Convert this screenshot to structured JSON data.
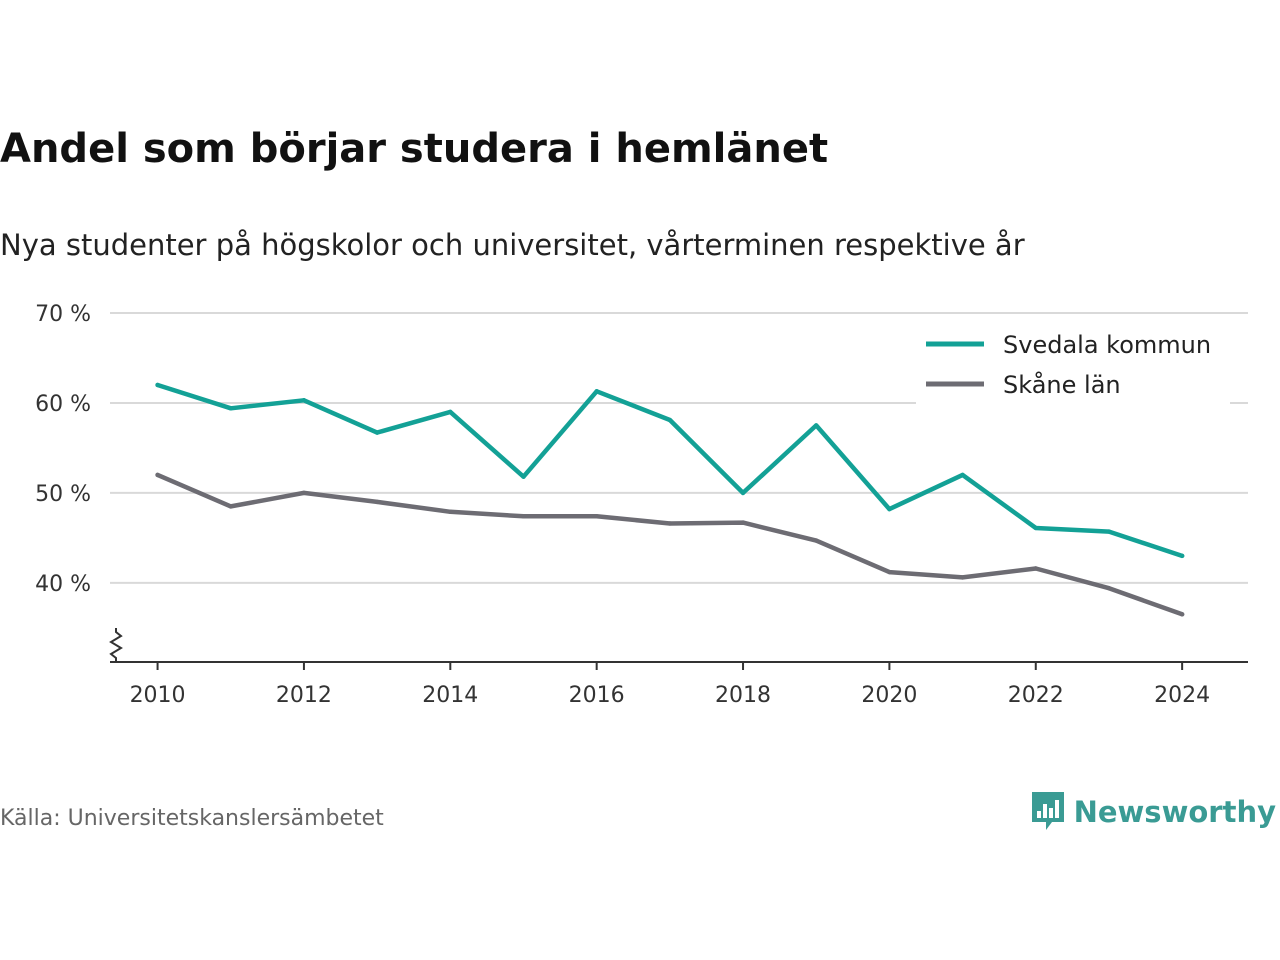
{
  "title": "Andel som börjar studera i hemlänet",
  "subtitle": "Nya studenter på högskolor och universitet, vårterminen respektive år",
  "source": "Källa: Universitetskanslersämbetet",
  "brand": {
    "name": "Newsworthy",
    "icon": "newsworthy-logo-icon",
    "color": "#3a9b94"
  },
  "colors": {
    "svedala": "#13a196",
    "skane": "#6d6c73",
    "grid": "#d9d9d9",
    "axis": "#333333"
  },
  "chart_data": {
    "type": "line",
    "x": [
      2010,
      2011,
      2012,
      2013,
      2014,
      2015,
      2016,
      2017,
      2018,
      2019,
      2020,
      2021,
      2022,
      2023,
      2024
    ],
    "series": [
      {
        "name": "Svedala kommun",
        "color": "#13a196",
        "values": [
          62.0,
          59.4,
          60.3,
          56.7,
          59.0,
          51.8,
          61.3,
          58.1,
          50.0,
          57.5,
          48.2,
          52.0,
          46.1,
          45.7,
          43.0
        ]
      },
      {
        "name": "Skåne län",
        "color": "#6d6c73",
        "values": [
          52.0,
          48.5,
          50.0,
          49.0,
          47.9,
          47.4,
          47.4,
          46.6,
          46.7,
          44.7,
          41.2,
          40.6,
          41.6,
          39.4,
          36.5
        ]
      }
    ],
    "xticks": [
      2010,
      2012,
      2014,
      2016,
      2018,
      2020,
      2022,
      2024
    ],
    "yticks": [
      {
        "value": 40,
        "label": "40 %"
      },
      {
        "value": 50,
        "label": "50 %"
      },
      {
        "value": 60,
        "label": "60 %"
      },
      {
        "value": 70,
        "label": "70 %"
      }
    ],
    "ylim": [
      31.2,
      70
    ],
    "xlim": [
      2009.35,
      2024.9
    ],
    "y_axis_break": true,
    "grid": "horizontal",
    "legend_position": "top-right"
  }
}
